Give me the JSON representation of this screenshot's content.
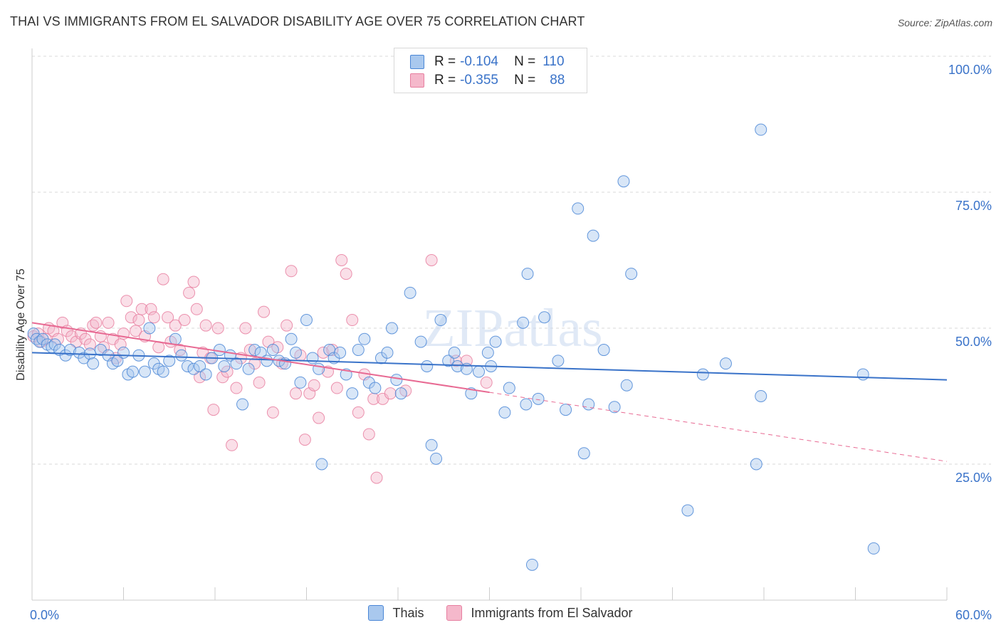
{
  "title": "THAI VS IMMIGRANTS FROM EL SALVADOR DISABILITY AGE OVER 75 CORRELATION CHART",
  "source": "Source: ZipAtlas.com",
  "watermark": "ZIPatlas",
  "legend_top": {
    "rows": [
      {
        "r_label": "R =",
        "r_value": "-0.104",
        "n_label": "N =",
        "n_value": "110"
      },
      {
        "r_label": "R =",
        "r_value": "-0.355",
        "n_label": "N =",
        "n_value": "88"
      }
    ]
  },
  "legend_bottom": [
    "Thais",
    "Immigrants from El Salvador"
  ],
  "colors": {
    "blue_fill": "#a9c8ee",
    "blue_stroke": "#4a86d6",
    "blue_line": "#3a73c9",
    "pink_fill": "#f5b8cb",
    "pink_stroke": "#e77fa0",
    "pink_line": "#e86a93",
    "grid": "#d9d9d9",
    "tick_label": "#3a73c9"
  },
  "chart_data": {
    "type": "scatter",
    "title": "THAI VS IMMIGRANTS FROM EL SALVADOR DISABILITY AGE OVER 75 CORRELATION CHART",
    "ylabel": "Disability Age Over 75",
    "xlabel": "",
    "xlim": [
      0,
      60
    ],
    "ylim": [
      0,
      100
    ],
    "x_tick_labels": [
      "0.0%",
      "60.0%"
    ],
    "y_tick_values": [
      25,
      50,
      75,
      100
    ],
    "y_tick_labels": [
      "25.0%",
      "50.0%",
      "75.0%",
      "100.0%"
    ],
    "grid": "horizontal dashed",
    "series": [
      {
        "name": "Thais",
        "r": -0.104,
        "n": 110,
        "trend": {
          "x0": 0,
          "y0": 45.5,
          "x1": 60,
          "y1": 40.5
        },
        "points": [
          [
            0.1,
            49
          ],
          [
            0.3,
            48
          ],
          [
            0.5,
            47.5
          ],
          [
            0.7,
            48
          ],
          [
            1,
            47
          ],
          [
            1.3,
            46.5
          ],
          [
            1.5,
            47
          ],
          [
            1.8,
            46
          ],
          [
            2.2,
            45
          ],
          [
            2.5,
            46
          ],
          [
            3.1,
            45.5
          ],
          [
            3.4,
            44.5
          ],
          [
            3.8,
            45.3
          ],
          [
            4,
            43.5
          ],
          [
            4.5,
            46
          ],
          [
            5,
            45
          ],
          [
            5.3,
            43.5
          ],
          [
            5.6,
            44
          ],
          [
            6,
            45.5
          ],
          [
            6.3,
            41.5
          ],
          [
            6.6,
            42
          ],
          [
            7,
            45
          ],
          [
            7.4,
            42
          ],
          [
            7.7,
            50
          ],
          [
            8,
            43.5
          ],
          [
            8.3,
            42.5
          ],
          [
            8.6,
            42
          ],
          [
            9,
            44
          ],
          [
            9.4,
            48
          ],
          [
            9.8,
            45
          ],
          [
            10.2,
            43
          ],
          [
            10.6,
            42.5
          ],
          [
            11,
            43
          ],
          [
            11.4,
            41.5
          ],
          [
            11.8,
            44.5
          ],
          [
            12.3,
            46
          ],
          [
            12.6,
            43
          ],
          [
            13,
            45
          ],
          [
            13.4,
            43.5
          ],
          [
            13.8,
            36
          ],
          [
            14.2,
            42.5
          ],
          [
            14.6,
            46
          ],
          [
            15,
            45.5
          ],
          [
            15.4,
            44
          ],
          [
            15.8,
            46
          ],
          [
            16.2,
            44
          ],
          [
            16.6,
            43.5
          ],
          [
            17,
            48
          ],
          [
            17.3,
            45.5
          ],
          [
            17.6,
            40
          ],
          [
            18,
            51.5
          ],
          [
            18.4,
            44.5
          ],
          [
            18.8,
            42.5
          ],
          [
            19,
            25
          ],
          [
            19.5,
            46
          ],
          [
            19.8,
            44.5
          ],
          [
            20.2,
            45.5
          ],
          [
            20.6,
            41.5
          ],
          [
            21,
            38
          ],
          [
            21.4,
            46
          ],
          [
            21.8,
            48
          ],
          [
            22.1,
            40
          ],
          [
            22.5,
            39
          ],
          [
            22.9,
            44.5
          ],
          [
            23.3,
            45.5
          ],
          [
            23.6,
            50
          ],
          [
            23.9,
            40.5
          ],
          [
            24.2,
            38
          ],
          [
            24.8,
            56.5
          ],
          [
            25.5,
            47.5
          ],
          [
            25.9,
            43
          ],
          [
            26.2,
            28.5
          ],
          [
            26.5,
            26
          ],
          [
            26.8,
            51.5
          ],
          [
            27.3,
            44
          ],
          [
            27.7,
            45.5
          ],
          [
            27.9,
            43
          ],
          [
            28.5,
            42.5
          ],
          [
            28.8,
            38
          ],
          [
            29.3,
            42
          ],
          [
            29.9,
            45.5
          ],
          [
            30.1,
            43
          ],
          [
            30.4,
            47.5
          ],
          [
            31,
            34.5
          ],
          [
            31.3,
            39
          ],
          [
            32.2,
            51
          ],
          [
            32.4,
            36
          ],
          [
            32.8,
            6.5
          ],
          [
            32.5,
            60
          ],
          [
            33.2,
            37
          ],
          [
            33.6,
            52
          ],
          [
            34.5,
            44
          ],
          [
            35,
            35
          ],
          [
            35.8,
            72
          ],
          [
            36.2,
            27
          ],
          [
            36.5,
            36
          ],
          [
            36.8,
            67
          ],
          [
            37.5,
            46
          ],
          [
            38.2,
            35.5
          ],
          [
            38.8,
            77
          ],
          [
            39,
            39.5
          ],
          [
            39.3,
            60
          ],
          [
            43,
            16.5
          ],
          [
            44,
            41.5
          ],
          [
            45.5,
            43.5
          ],
          [
            47.5,
            25
          ],
          [
            47.8,
            37.5
          ],
          [
            47.8,
            86.5
          ],
          [
            54.5,
            41.5
          ],
          [
            55.2,
            9.5
          ]
        ]
      },
      {
        "name": "Immigrants from El Salvador",
        "r": -0.355,
        "n": 88,
        "trend": {
          "x0": 0,
          "y0": 51,
          "x1": 30,
          "y1": 38.2
        },
        "trend_dashed": {
          "x0": 30,
          "y0": 38.2,
          "x1": 60,
          "y1": 25.5
        },
        "points": [
          [
            0.1,
            48.5
          ],
          [
            0.4,
            49
          ],
          [
            0.6,
            47.5
          ],
          [
            0.9,
            48
          ],
          [
            1.1,
            50
          ],
          [
            1.4,
            49.5
          ],
          [
            1.7,
            48
          ],
          [
            2,
            51
          ],
          [
            2.3,
            49.5
          ],
          [
            2.6,
            48.5
          ],
          [
            2.9,
            47.5
          ],
          [
            3.2,
            49
          ],
          [
            3.5,
            48
          ],
          [
            3.8,
            47
          ],
          [
            4,
            50.5
          ],
          [
            4.2,
            51
          ],
          [
            4.5,
            48.5
          ],
          [
            4.7,
            46.5
          ],
          [
            5,
            51
          ],
          [
            5.3,
            48
          ],
          [
            5.5,
            44.5
          ],
          [
            5.8,
            47
          ],
          [
            6,
            49
          ],
          [
            6.2,
            55
          ],
          [
            6.5,
            52
          ],
          [
            6.8,
            49.5
          ],
          [
            7,
            51.5
          ],
          [
            7.2,
            53.5
          ],
          [
            7.4,
            48.5
          ],
          [
            7.8,
            53.5
          ],
          [
            8,
            52
          ],
          [
            8.3,
            46.5
          ],
          [
            8.6,
            59
          ],
          [
            8.9,
            52
          ],
          [
            9.1,
            47.5
          ],
          [
            9.4,
            50.5
          ],
          [
            9.7,
            46
          ],
          [
            10,
            51.5
          ],
          [
            10.3,
            56.5
          ],
          [
            10.6,
            58.5
          ],
          [
            10.8,
            53.5
          ],
          [
            11,
            41
          ],
          [
            11.2,
            45.5
          ],
          [
            11.4,
            50.5
          ],
          [
            11.7,
            44.5
          ],
          [
            11.9,
            35
          ],
          [
            12.2,
            50
          ],
          [
            12.5,
            41
          ],
          [
            12.8,
            42
          ],
          [
            13.1,
            28.5
          ],
          [
            13.4,
            39
          ],
          [
            13.7,
            44.5
          ],
          [
            14,
            50
          ],
          [
            14.3,
            46
          ],
          [
            14.6,
            43.5
          ],
          [
            14.9,
            40
          ],
          [
            15.2,
            53
          ],
          [
            15.5,
            47.5
          ],
          [
            15.8,
            34.5
          ],
          [
            16.1,
            46.5
          ],
          [
            16.4,
            43.5
          ],
          [
            16.7,
            50.5
          ],
          [
            17,
            60.5
          ],
          [
            17.3,
            38
          ],
          [
            17.6,
            45
          ],
          [
            17.9,
            29.5
          ],
          [
            18.2,
            38
          ],
          [
            18.5,
            39.5
          ],
          [
            18.8,
            33.5
          ],
          [
            19.1,
            45.5
          ],
          [
            19.4,
            42
          ],
          [
            19.7,
            46
          ],
          [
            20,
            39
          ],
          [
            20.3,
            62.5
          ],
          [
            20.6,
            60
          ],
          [
            21,
            51.5
          ],
          [
            21.4,
            34.5
          ],
          [
            21.8,
            41.5
          ],
          [
            22.1,
            30.5
          ],
          [
            22.4,
            37
          ],
          [
            22.6,
            22.5
          ],
          [
            23,
            37
          ],
          [
            23.5,
            38
          ],
          [
            24.5,
            38.5
          ],
          [
            26.2,
            62.5
          ],
          [
            27.8,
            44
          ],
          [
            28.5,
            44
          ],
          [
            29.8,
            40
          ]
        ]
      }
    ]
  }
}
